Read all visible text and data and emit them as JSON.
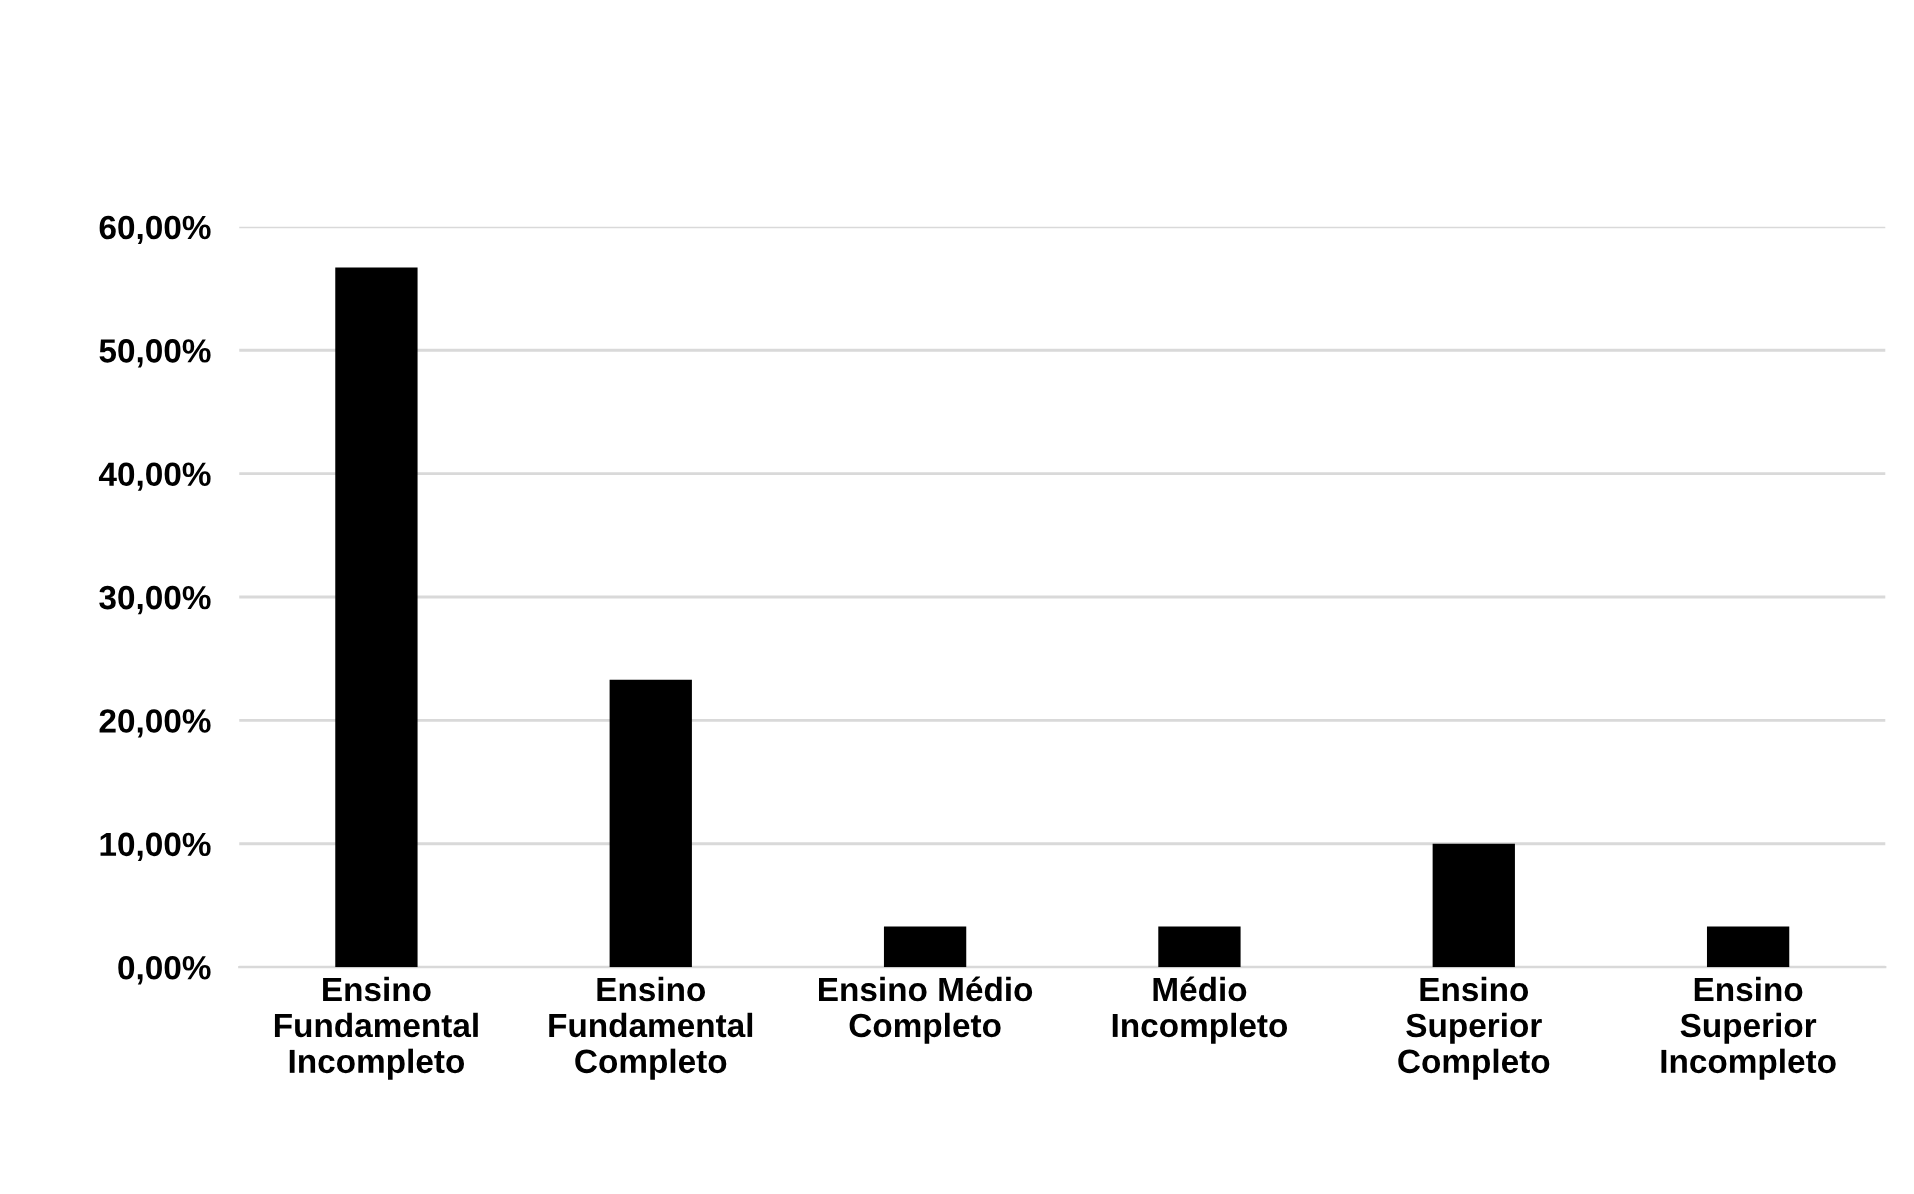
{
  "chart_data": {
    "type": "bar",
    "categories": [
      "Ensino\nFundamental\nIncompleto",
      "Ensino\nFundamental\nCompleto",
      "Ensino Médio\nCompleto",
      "Médio\nIncompleto",
      "Ensino\nSuperior\nCompleto",
      "Ensino\nSuperior\nIncompleto"
    ],
    "values": [
      56.7,
      23.3,
      3.3,
      3.3,
      10.0,
      3.3
    ],
    "color": "#000000",
    "ylim": [
      0,
      60
    ],
    "yticks": [
      {
        "value": 0,
        "label": "0,00%"
      },
      {
        "value": 10,
        "label": "10,00%"
      },
      {
        "value": 20,
        "label": "20,00%"
      },
      {
        "value": 30,
        "label": "30,00%"
      },
      {
        "value": 40,
        "label": "40,00%"
      },
      {
        "value": 50,
        "label": "50,00%"
      },
      {
        "value": 60,
        "label": "60,00%"
      }
    ],
    "grid": "y"
  }
}
